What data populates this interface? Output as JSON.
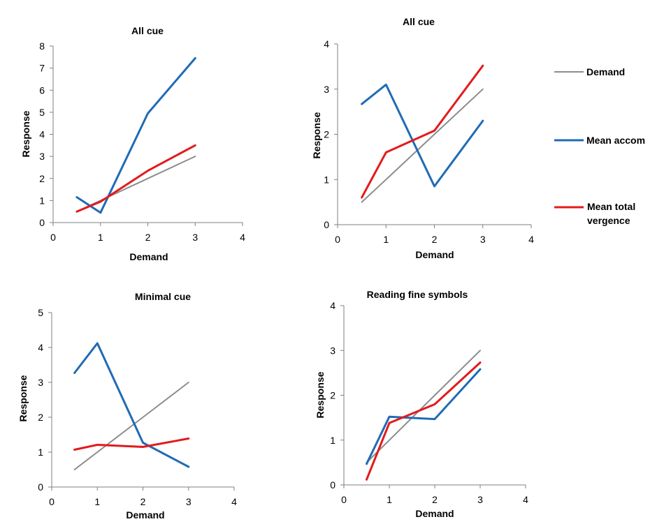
{
  "legend": [
    {
      "label": "Demand",
      "color": "#8c8c8c"
    },
    {
      "label": "Mean accom",
      "color": "#1f6bb5"
    },
    {
      "label_lines": [
        "Mean total",
        "vergence"
      ],
      "color": "#e31a1c"
    }
  ],
  "chart_data": [
    {
      "type": "line",
      "title": "All cue",
      "xlabel": "Demand",
      "ylabel": "Response",
      "xlim": [
        0,
        4
      ],
      "ylim": [
        0,
        8
      ],
      "xticks": [
        "0",
        "1",
        "2",
        "3",
        "4"
      ],
      "yticks": [
        "0",
        "1",
        "2",
        "3",
        "4",
        "5",
        "6",
        "7",
        "8"
      ],
      "series": [
        {
          "name": "Demand",
          "color": "#8c8c8c",
          "x": [
            0.5,
            1,
            2,
            3
          ],
          "y": [
            0.5,
            1,
            2,
            3
          ]
        },
        {
          "name": "Mean accom",
          "color": "#1f6bb5",
          "x": [
            0.5,
            1,
            2,
            3
          ],
          "y": [
            1.15,
            0.45,
            4.95,
            7.45
          ]
        },
        {
          "name": "Mean total vergence",
          "color": "#e31a1c",
          "x": [
            0.5,
            1,
            2,
            3
          ],
          "y": [
            0.5,
            0.95,
            2.35,
            3.5
          ]
        }
      ]
    },
    {
      "type": "line",
      "title": "All cue",
      "xlabel": "Demand",
      "ylabel": "Response",
      "xlim": [
        0,
        4
      ],
      "ylim": [
        0,
        4
      ],
      "xticks": [
        "0",
        "1",
        "2",
        "3",
        "4"
      ],
      "yticks": [
        "0",
        "1",
        "2",
        "3",
        "4"
      ],
      "series": [
        {
          "name": "Demand",
          "color": "#8c8c8c",
          "x": [
            0.5,
            1,
            2,
            3
          ],
          "y": [
            0.5,
            1,
            2,
            3
          ]
        },
        {
          "name": "Mean accom",
          "color": "#1f6bb5",
          "x": [
            0.5,
            1,
            2,
            3
          ],
          "y": [
            2.67,
            3.1,
            0.85,
            2.3
          ]
        },
        {
          "name": "Mean total vergence",
          "color": "#e31a1c",
          "x": [
            0.5,
            1,
            2,
            3
          ],
          "y": [
            0.6,
            1.6,
            2.08,
            3.52
          ]
        }
      ]
    },
    {
      "type": "line",
      "title": "Minimal cue",
      "xlabel": "Demand",
      "ylabel": "Response",
      "xlim": [
        0,
        4
      ],
      "ylim": [
        0,
        5
      ],
      "xticks": [
        "0",
        "1",
        "2",
        "3",
        "4"
      ],
      "yticks": [
        "0",
        "1",
        "2",
        "3",
        "4",
        "5"
      ],
      "series": [
        {
          "name": "Demand",
          "color": "#8c8c8c",
          "x": [
            0.5,
            1,
            2,
            3
          ],
          "y": [
            0.5,
            1,
            2,
            3
          ]
        },
        {
          "name": "Mean accom",
          "color": "#1f6bb5",
          "x": [
            0.5,
            1,
            2,
            3
          ],
          "y": [
            3.27,
            4.12,
            1.27,
            0.58
          ]
        },
        {
          "name": "Mean total vergence",
          "color": "#e31a1c",
          "x": [
            0.5,
            1,
            2,
            3
          ],
          "y": [
            1.07,
            1.21,
            1.15,
            1.39
          ]
        }
      ]
    },
    {
      "type": "line",
      "title": "Reading fine symbols",
      "xlabel": "Demand",
      "ylabel": "Response",
      "xlim": [
        0,
        4
      ],
      "ylim": [
        0,
        4
      ],
      "xticks": [
        "0",
        "1",
        "2",
        "3",
        "4"
      ],
      "yticks": [
        "0",
        "1",
        "2",
        "3",
        "4"
      ],
      "series": [
        {
          "name": "Demand",
          "color": "#8c8c8c",
          "x": [
            0.5,
            1,
            2,
            3
          ],
          "y": [
            0.5,
            1,
            2,
            3
          ]
        },
        {
          "name": "Mean accom",
          "color": "#1f6bb5",
          "x": [
            0.5,
            1,
            2,
            3
          ],
          "y": [
            0.47,
            1.52,
            1.47,
            2.58
          ]
        },
        {
          "name": "Mean total vergence",
          "color": "#e31a1c",
          "x": [
            0.5,
            1,
            2,
            3
          ],
          "y": [
            0.12,
            1.38,
            1.8,
            2.73
          ]
        }
      ]
    }
  ]
}
